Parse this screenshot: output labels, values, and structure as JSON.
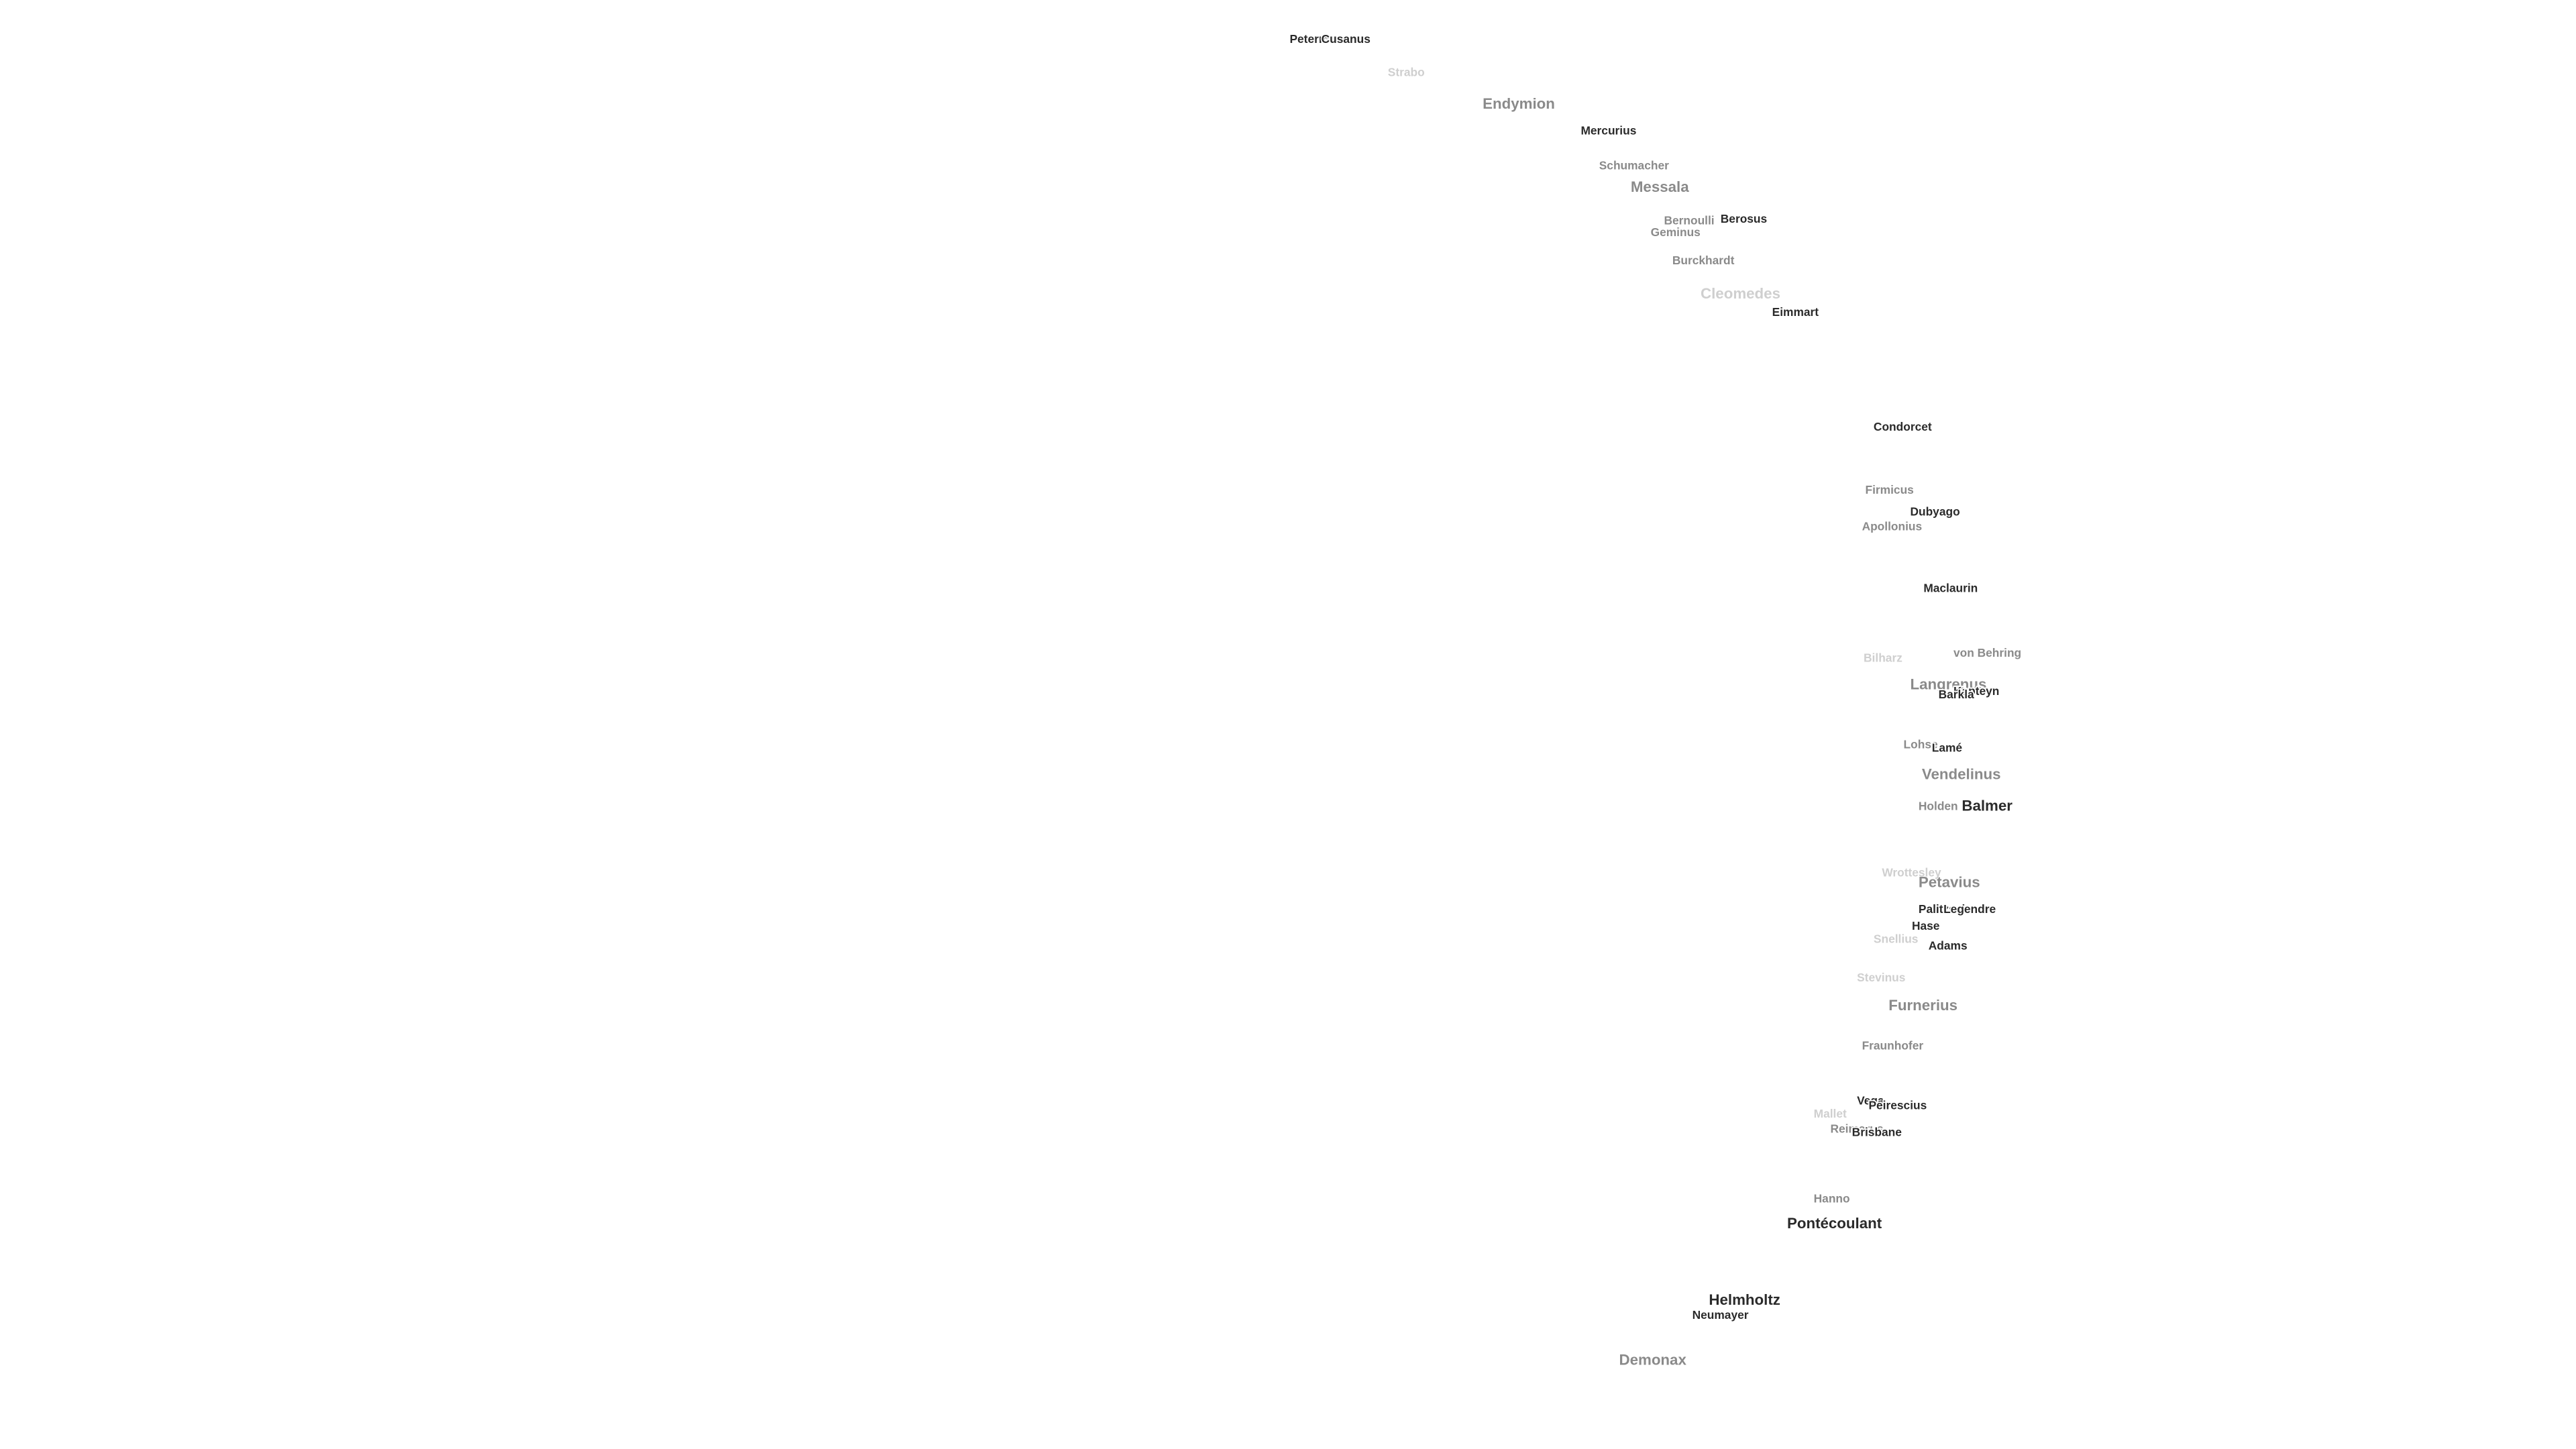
{
  "labels": [
    "Petermann",
    "Cusanus",
    "Strabo",
    "Endymion",
    "Mercurius",
    "Schumacher",
    "Messala",
    "Bernoulli",
    "Berosus",
    "Geminus",
    "Burckhardt",
    "Cleomedes",
    "Eimmart",
    "Condorcet",
    "Firmicus",
    "Dubyago",
    "Apollonius",
    "Maclaurin",
    "von Behring",
    "Bilharz",
    "Langrenus",
    "Kapteyn",
    "Barkla",
    "Lohse",
    "Lamé",
    "Vendelinus",
    "Holden",
    "Balmer",
    "Wrottesley",
    "Petavius",
    "Palitzsch",
    "Legendre",
    "Hase",
    "Snellius",
    "Adams",
    "Stevinus",
    "Furnerius",
    "Fraunhofer",
    "Vega",
    "Peirescius",
    "Mallet",
    "Reimarus",
    "Brisbane",
    "Hanno",
    "Pontécoulant",
    "Helmholtz",
    "Neumayer",
    "Demonax"
  ]
}
